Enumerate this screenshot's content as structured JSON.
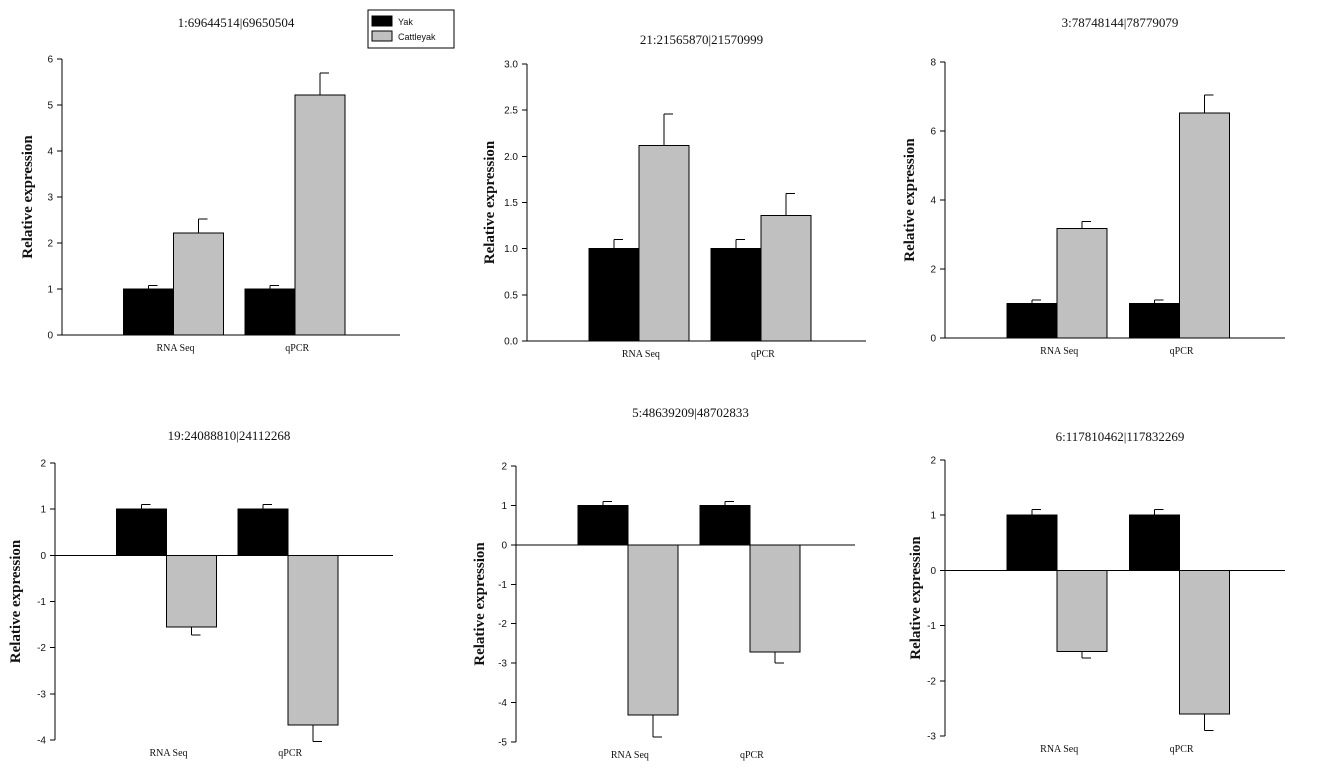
{
  "legend": {
    "entries": [
      {
        "label": "Yak",
        "color": "#000000"
      },
      {
        "label": "Cattleyak",
        "color": "#c0c0c0"
      }
    ]
  },
  "chart_data": [
    {
      "type": "bar",
      "title": "1:69644514|69650504",
      "ylabel": "Relative expression",
      "categories": [
        "RNA Seq",
        "qPCR"
      ],
      "ylim": [
        0,
        6
      ],
      "yticks": [
        0,
        1,
        2,
        3,
        4,
        5,
        6
      ],
      "ytick_labels": [
        "0",
        "1",
        "2",
        "3",
        "4",
        "5",
        "6"
      ],
      "series": [
        {
          "name": "Yak",
          "color": "#000000",
          "values": [
            1.0,
            1.0
          ],
          "errors": [
            0.08,
            0.08
          ]
        },
        {
          "name": "Cattleyak",
          "color": "#c0c0c0",
          "values": [
            2.22,
            5.22
          ],
          "errors": [
            0.3,
            0.48
          ]
        }
      ]
    },
    {
      "type": "bar",
      "title": "21:21565870|21570999",
      "ylabel": "Relative expression",
      "categories": [
        "RNA Seq",
        "qPCR"
      ],
      "ylim": [
        0,
        3
      ],
      "yticks": [
        0,
        0.5,
        1,
        1.5,
        2,
        2.5,
        3
      ],
      "ytick_labels": [
        "0.0",
        "0.5",
        "1.0",
        "1.5",
        "2.0",
        "2.5",
        "3.0"
      ],
      "series": [
        {
          "name": "Yak",
          "color": "#000000",
          "values": [
            1.0,
            1.0
          ],
          "errors": [
            0.1,
            0.1
          ]
        },
        {
          "name": "Cattleyak",
          "color": "#c0c0c0",
          "values": [
            2.12,
            1.36
          ],
          "errors": [
            0.34,
            0.24
          ]
        }
      ]
    },
    {
      "type": "bar",
      "title": "3:78748144|78779079",
      "ylabel": "Relative expression",
      "categories": [
        "RNA Seq",
        "qPCR"
      ],
      "ylim": [
        0,
        8
      ],
      "yticks": [
        0,
        2,
        4,
        6,
        8
      ],
      "ytick_labels": [
        "0",
        "2",
        "4",
        "6",
        "8"
      ],
      "series": [
        {
          "name": "Yak",
          "color": "#000000",
          "values": [
            1.0,
            1.0
          ],
          "errors": [
            0.1,
            0.1
          ]
        },
        {
          "name": "Cattleyak",
          "color": "#c0c0c0",
          "values": [
            3.17,
            6.52
          ],
          "errors": [
            0.2,
            0.52
          ]
        }
      ]
    },
    {
      "type": "bar",
      "title": "19:24088810|24112268",
      "ylabel": "Relative expression",
      "categories": [
        "RNA Seq",
        "qPCR"
      ],
      "ylim": [
        -4,
        2
      ],
      "yticks": [
        -4,
        -3,
        -2,
        -1,
        0,
        1,
        2
      ],
      "ytick_labels": [
        "-4",
        "-3",
        "-2",
        "-1",
        "0",
        "1",
        "2"
      ],
      "series": [
        {
          "name": "Yak",
          "color": "#000000",
          "values": [
            1.0,
            1.0
          ],
          "errors": [
            0.1,
            0.1
          ]
        },
        {
          "name": "Cattleyak",
          "color": "#c0c0c0",
          "values": [
            -1.55,
            -3.68
          ],
          "errors": [
            0.18,
            0.35
          ]
        }
      ]
    },
    {
      "type": "bar",
      "title": "5:48639209|48702833",
      "ylabel": "Relative expression",
      "categories": [
        "RNA Seq",
        "qPCR"
      ],
      "ylim": [
        -5,
        2
      ],
      "yticks": [
        -5,
        -4,
        -3,
        -2,
        -1,
        0,
        1,
        2
      ],
      "ytick_labels": [
        "-5",
        "-4",
        "-3",
        "-2",
        "-1",
        "0",
        "1",
        "2"
      ],
      "series": [
        {
          "name": "Yak",
          "color": "#000000",
          "values": [
            1.0,
            1.0
          ],
          "errors": [
            0.1,
            0.1
          ]
        },
        {
          "name": "Cattleyak",
          "color": "#c0c0c0",
          "values": [
            -4.32,
            -2.72
          ],
          "errors": [
            0.55,
            0.28
          ]
        }
      ]
    },
    {
      "type": "bar",
      "title": "6:117810462|117832269",
      "ylabel": "Relative expression",
      "categories": [
        "RNA Seq",
        "qPCR"
      ],
      "ylim": [
        -3,
        2
      ],
      "yticks": [
        -3,
        -2,
        -1,
        0,
        1,
        2
      ],
      "ytick_labels": [
        "-3",
        "-2",
        "-1",
        "0",
        "1",
        "2"
      ],
      "series": [
        {
          "name": "Yak",
          "color": "#000000",
          "values": [
            1.0,
            1.0
          ],
          "errors": [
            0.1,
            0.1
          ]
        },
        {
          "name": "Cattleyak",
          "color": "#c0c0c0",
          "values": [
            -1.47,
            -2.6
          ],
          "errors": [
            0.12,
            0.3
          ]
        }
      ]
    }
  ]
}
